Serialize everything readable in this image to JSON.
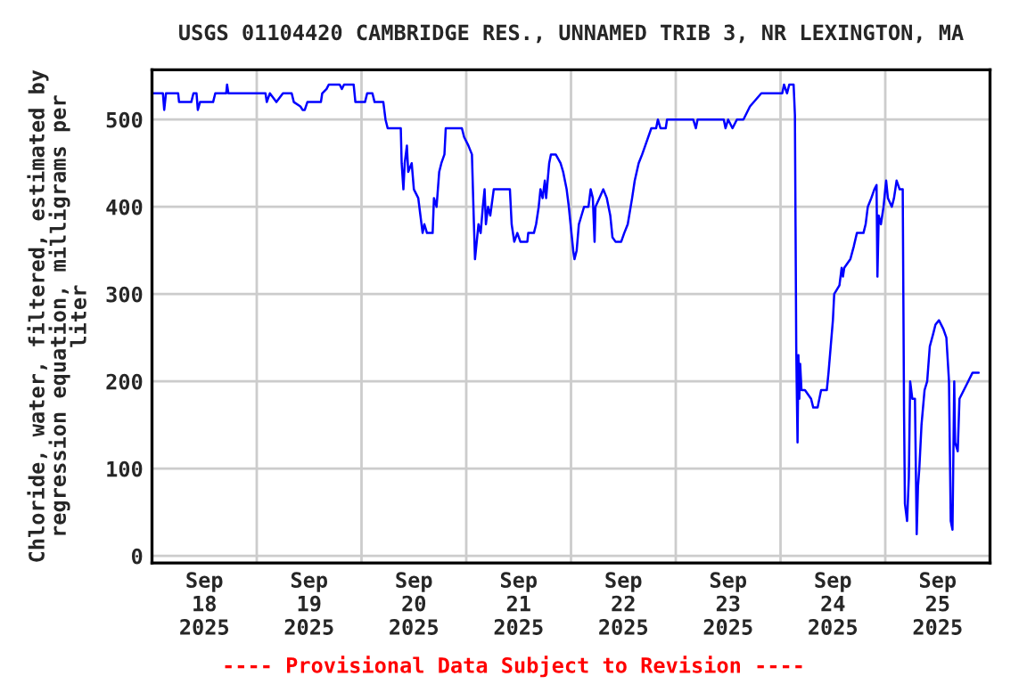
{
  "chart_data": {
    "type": "line",
    "title": "USGS 01104420 CAMBRIDGE RES., UNNAMED TRIB 3, NR LEXINGTON, MA",
    "ylabel": "Chloride, water, filtered, estimated by\nregression equation, milligrams per\nliter",
    "annotations": [
      "---- Provisional Data Subject to Revision ----"
    ],
    "xlim": [
      "2025-09-18T00:00",
      "2025-09-26T00:00"
    ],
    "xticks": [
      {
        "value": "2025-09-18T00:00",
        "label": null
      },
      {
        "value": "2025-09-18T12:00",
        "label": "Sep\n18\n2025"
      },
      {
        "value": "2025-09-19T00:00",
        "label": null
      },
      {
        "value": "2025-09-19T12:00",
        "label": "Sep\n19\n2025"
      },
      {
        "value": "2025-09-20T00:00",
        "label": null
      },
      {
        "value": "2025-09-20T12:00",
        "label": "Sep\n20\n2025"
      },
      {
        "value": "2025-09-21T00:00",
        "label": null
      },
      {
        "value": "2025-09-21T12:00",
        "label": "Sep\n21\n2025"
      },
      {
        "value": "2025-09-22T00:00",
        "label": null
      },
      {
        "value": "2025-09-22T12:00",
        "label": "Sep\n22\n2025"
      },
      {
        "value": "2025-09-23T00:00",
        "label": null
      },
      {
        "value": "2025-09-23T12:00",
        "label": "Sep\n23\n2025"
      },
      {
        "value": "2025-09-24T00:00",
        "label": null
      },
      {
        "value": "2025-09-24T12:00",
        "label": "Sep\n24\n2025"
      },
      {
        "value": "2025-09-25T00:00",
        "label": null
      },
      {
        "value": "2025-09-25T12:00",
        "label": "Sep\n25\n2025"
      },
      {
        "value": "2025-09-26T00:00",
        "label": null
      }
    ],
    "ylim": [
      -8,
      557
    ],
    "yticks": [
      0,
      100,
      200,
      300,
      400,
      500
    ],
    "grid": true,
    "series": [
      {
        "color": "#0000ff",
        "x": [
          "2025-09-18T00:00",
          "2025-09-18T02:30",
          "2025-09-18T02:48",
          "2025-09-18T03:12",
          "2025-09-18T06:00",
          "2025-09-18T06:12",
          "2025-09-18T09:00",
          "2025-09-18T09:30",
          "2025-09-18T10:12",
          "2025-09-18T10:30",
          "2025-09-18T11:00",
          "2025-09-18T14:00",
          "2025-09-18T14:30",
          "2025-09-18T17:00",
          "2025-09-18T17:12",
          "2025-09-18T17:30",
          "2025-09-19T02:00",
          "2025-09-19T02:18",
          "2025-09-19T03:00",
          "2025-09-19T04:30",
          "2025-09-19T06:00",
          "2025-09-19T08:00",
          "2025-09-19T08:30",
          "2025-09-19T10:00",
          "2025-09-19T10:30",
          "2025-09-19T11:00",
          "2025-09-19T11:36",
          "2025-09-19T14:42",
          "2025-09-19T15:00",
          "2025-09-19T16:00",
          "2025-09-19T16:30",
          "2025-09-19T19:00",
          "2025-09-19T19:30",
          "2025-09-19T20:00",
          "2025-09-19T22:12",
          "2025-09-19T22:36",
          "2025-09-20T00:48",
          "2025-09-20T01:18",
          "2025-09-20T02:30",
          "2025-09-20T03:00",
          "2025-09-20T05:00",
          "2025-09-20T05:30",
          "2025-09-20T06:00",
          "2025-09-20T09:00",
          "2025-09-20T09:12",
          "2025-09-20T09:36",
          "2025-09-20T09:54",
          "2025-09-20T10:24",
          "2025-09-20T10:42",
          "2025-09-20T11:30",
          "2025-09-20T12:00",
          "2025-09-20T13:00",
          "2025-09-20T13:30",
          "2025-09-20T14:00",
          "2025-09-20T14:24",
          "2025-09-20T15:00",
          "2025-09-20T16:18",
          "2025-09-20T16:36",
          "2025-09-20T17:12",
          "2025-09-20T17:48",
          "2025-09-20T18:18",
          "2025-09-20T19:00",
          "2025-09-20T19:18",
          "2025-09-20T23:00",
          "2025-09-20T23:30",
          "2025-09-21T00:30",
          "2025-09-21T01:18",
          "2025-09-21T01:42",
          "2025-09-21T02:00",
          "2025-09-21T02:12",
          "2025-09-21T02:48",
          "2025-09-21T03:18",
          "2025-09-21T03:48",
          "2025-09-21T04:12",
          "2025-09-21T04:30",
          "2025-09-21T05:00",
          "2025-09-21T05:30",
          "2025-09-21T06:18",
          "2025-09-21T10:00",
          "2025-09-21T10:24",
          "2025-09-21T11:00",
          "2025-09-21T11:42",
          "2025-09-21T12:24",
          "2025-09-21T14:00",
          "2025-09-21T14:12",
          "2025-09-21T15:30",
          "2025-09-21T16:00",
          "2025-09-21T16:36",
          "2025-09-21T17:00",
          "2025-09-21T17:30",
          "2025-09-21T18:00",
          "2025-09-21T18:18",
          "2025-09-21T19:00",
          "2025-09-21T19:24",
          "2025-09-21T20:30",
          "2025-09-21T21:36",
          "2025-09-21T22:12",
          "2025-09-21T23:00",
          "2025-09-21T23:30",
          "2025-09-22T00:30",
          "2025-09-22T00:48",
          "2025-09-22T01:18",
          "2025-09-22T01:48",
          "2025-09-22T02:24",
          "2025-09-22T03:00",
          "2025-09-22T04:00",
          "2025-09-22T04:30",
          "2025-09-22T05:00",
          "2025-09-22T05:24",
          "2025-09-22T05:36",
          "2025-09-22T06:30",
          "2025-09-22T07:24",
          "2025-09-22T08:12",
          "2025-09-22T09:00",
          "2025-09-22T09:30",
          "2025-09-22T10:12",
          "2025-09-22T11:30",
          "2025-09-22T12:12",
          "2025-09-22T13:00",
          "2025-09-22T14:00",
          "2025-09-22T14:36",
          "2025-09-22T15:30",
          "2025-09-22T16:18",
          "2025-09-22T17:00",
          "2025-09-22T18:24",
          "2025-09-22T19:30",
          "2025-09-22T19:54",
          "2025-09-22T20:30",
          "2025-09-22T21:42",
          "2025-09-22T22:00",
          "2025-09-23T04:00",
          "2025-09-23T04:36",
          "2025-09-23T05:00",
          "2025-09-23T11:00",
          "2025-09-23T11:24",
          "2025-09-23T12:00",
          "2025-09-23T13:00",
          "2025-09-23T14:00",
          "2025-09-23T15:30",
          "2025-09-23T17:00",
          "2025-09-23T19:36",
          "2025-09-24T00:24",
          "2025-09-24T00:48",
          "2025-09-24T01:30",
          "2025-09-24T02:00",
          "2025-09-24T03:00",
          "2025-09-24T03:18",
          "2025-09-24T03:36",
          "2025-09-24T03:42",
          "2025-09-24T03:54",
          "2025-09-24T04:06",
          "2025-09-24T04:18",
          "2025-09-24T04:30",
          "2025-09-24T04:48",
          "2025-09-24T05:36",
          "2025-09-24T07:00",
          "2025-09-24T07:30",
          "2025-09-24T08:30",
          "2025-09-24T09:18",
          "2025-09-24T10:36",
          "2025-09-24T11:00",
          "2025-09-24T11:30",
          "2025-09-24T12:00",
          "2025-09-24T12:18",
          "2025-09-24T13:30",
          "2025-09-24T14:00",
          "2025-09-24T14:18",
          "2025-09-24T14:36",
          "2025-09-24T16:00",
          "2025-09-24T16:48",
          "2025-09-24T17:30",
          "2025-09-24T19:00",
          "2025-09-24T19:30",
          "2025-09-24T20:00",
          "2025-09-24T20:48",
          "2025-09-24T21:30",
          "2025-09-24T22:00",
          "2025-09-24T22:12",
          "2025-09-24T22:30",
          "2025-09-24T23:00",
          "2025-09-24T23:36",
          "2025-09-25T00:12",
          "2025-09-25T00:36",
          "2025-09-25T01:30",
          "2025-09-25T02:00",
          "2025-09-25T02:36",
          "2025-09-25T03:18",
          "2025-09-25T04:00",
          "2025-09-25T04:18",
          "2025-09-25T04:30",
          "2025-09-25T05:00",
          "2025-09-25T05:24",
          "2025-09-25T05:42",
          "2025-09-25T06:12",
          "2025-09-25T06:48",
          "2025-09-25T07:12",
          "2025-09-25T07:30",
          "2025-09-25T07:48",
          "2025-09-25T08:18",
          "2025-09-25T09:00",
          "2025-09-25T09:36",
          "2025-09-25T10:12",
          "2025-09-25T11:00",
          "2025-09-25T11:30",
          "2025-09-25T12:18",
          "2025-09-25T13:18",
          "2025-09-25T14:00",
          "2025-09-25T14:36",
          "2025-09-25T15:00",
          "2025-09-25T15:24",
          "2025-09-25T15:48",
          "2025-09-25T16:00",
          "2025-09-25T16:36",
          "2025-09-25T17:00",
          "2025-09-25T18:00",
          "2025-09-25T19:00",
          "2025-09-25T20:00",
          "2025-09-25T21:24"
        ],
        "values": [
          530,
          530,
          511,
          530,
          530,
          520,
          520,
          530,
          530,
          511,
          520,
          520,
          530,
          530,
          540,
          530,
          530,
          520,
          530,
          520,
          530,
          530,
          520,
          515,
          511,
          511,
          520,
          520,
          530,
          535,
          540,
          540,
          535,
          540,
          540,
          520,
          520,
          530,
          530,
          520,
          520,
          500,
          490,
          490,
          450,
          420,
          450,
          470,
          440,
          450,
          420,
          410,
          390,
          370,
          380,
          370,
          370,
          410,
          400,
          440,
          450,
          460,
          490,
          490,
          480,
          470,
          460,
          390,
          340,
          350,
          380,
          370,
          400,
          420,
          380,
          400,
          390,
          420,
          420,
          380,
          360,
          370,
          360,
          360,
          370,
          370,
          380,
          400,
          420,
          410,
          430,
          410,
          450,
          460,
          460,
          450,
          440,
          420,
          400,
          350,
          340,
          350,
          380,
          390,
          400,
          400,
          420,
          410,
          360,
          400,
          410,
          420,
          410,
          390,
          365,
          360,
          360,
          370,
          380,
          410,
          430,
          450,
          460,
          470,
          490,
          490,
          500,
          490,
          490,
          500,
          500,
          490,
          500,
          500,
          490,
          500,
          490,
          500,
          500,
          515,
          530,
          530,
          540,
          530,
          540,
          540,
          505,
          240,
          200,
          130,
          230,
          180,
          220,
          190,
          190,
          180,
          170,
          170,
          190,
          190,
          210,
          240,
          270,
          300,
          310,
          330,
          320,
          330,
          340,
          355,
          370,
          370,
          380,
          400,
          410,
          420,
          425,
          320,
          390,
          380,
          400,
          430,
          410,
          400,
          410,
          430,
          420,
          420,
          165,
          60,
          40,
          90,
          200,
          180,
          180,
          25,
          80,
          100,
          150,
          190,
          200,
          240,
          255,
          265,
          270,
          260,
          250,
          200,
          40,
          30,
          200,
          130,
          120,
          180,
          190,
          200,
          210,
          210
        ]
      }
    ]
  }
}
